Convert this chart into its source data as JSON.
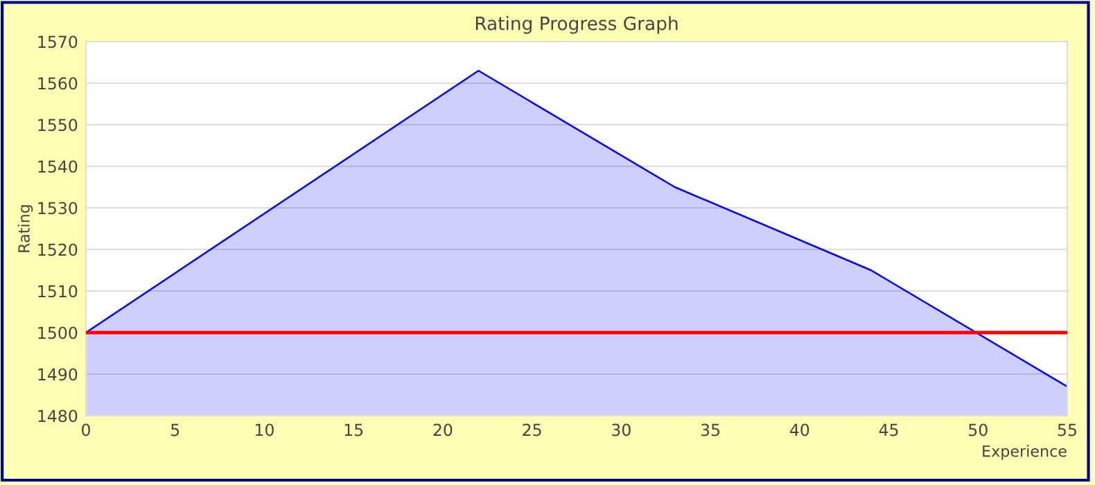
{
  "chart_data": {
    "type": "area",
    "title": "Rating Progress Graph",
    "xlabel": "Experience",
    "ylabel": "Rating",
    "x": [
      0,
      22,
      33,
      44,
      55
    ],
    "series": [
      {
        "color": "#0000ff",
        "values": [
          1500,
          1563,
          1535,
          1515,
          1487
        ]
      }
    ],
    "xlim": [
      0,
      55
    ],
    "xticks": [
      0,
      5,
      10,
      15,
      20,
      25,
      30,
      35,
      40,
      45,
      50,
      55
    ],
    "ylim": [
      1480,
      1570
    ],
    "yticks": [
      1480,
      1490,
      1500,
      1510,
      1520,
      1530,
      1540,
      1550,
      1560,
      1570
    ],
    "ref_lines": [
      {
        "axis": "y",
        "value": 1500,
        "color": "#ff0000"
      }
    ],
    "grid": "y",
    "legend": false
  }
}
